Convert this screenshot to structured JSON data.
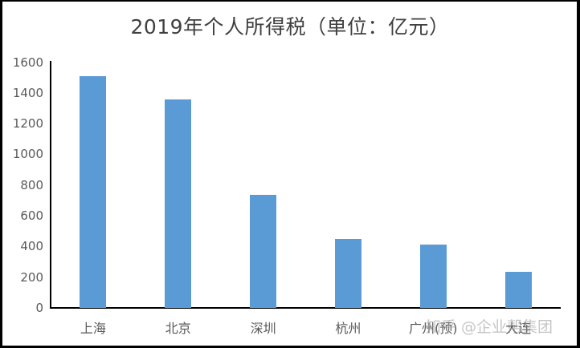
{
  "chart_data": {
    "type": "bar",
    "title": "2019年个人所得税（单位：亿元）",
    "categories": [
      "上海",
      "北京",
      "深圳",
      "杭州",
      "广州(预)",
      "大连"
    ],
    "values": [
      1508,
      1357,
      736,
      449,
      414,
      235
    ],
    "xlabel": "",
    "ylabel": "",
    "ylim": [
      0,
      1600
    ],
    "yticks": [
      "0",
      "200",
      "400",
      "600",
      "800",
      "1000",
      "1200",
      "1400",
      "1600"
    ],
    "grid": false,
    "legend": null,
    "bar_color": "#5B9BD5"
  },
  "watermark": "知乎 @企业帮集团"
}
